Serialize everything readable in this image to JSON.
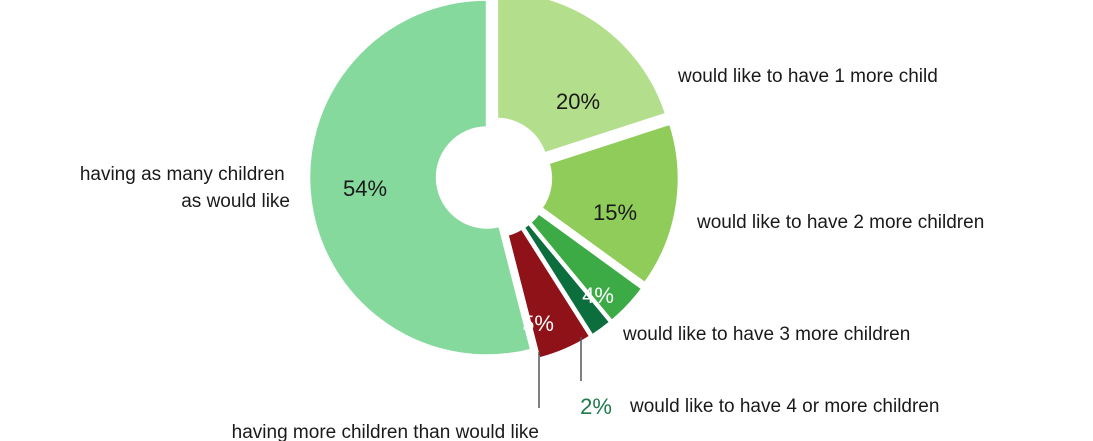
{
  "chart_data": {
    "type": "pie",
    "style": "exploded donut",
    "categories": [
      "would like to have 1 more child",
      "would like to have 2 more children",
      "would like to have 3 more children",
      "would like to have 4 or more children",
      "having more children than would like",
      "having as many children as would like"
    ],
    "values": [
      20,
      15,
      4,
      2,
      5,
      54
    ],
    "value_labels": [
      "20%",
      "15%",
      "4%",
      "2%",
      "5%",
      "54%"
    ],
    "colors": [
      "#b3df8c",
      "#8fcc5a",
      "#3cab45",
      "#0c6e3d",
      "#8f1219",
      "#86d99c"
    ],
    "legend": "none (direct labels beside slices)"
  }
}
